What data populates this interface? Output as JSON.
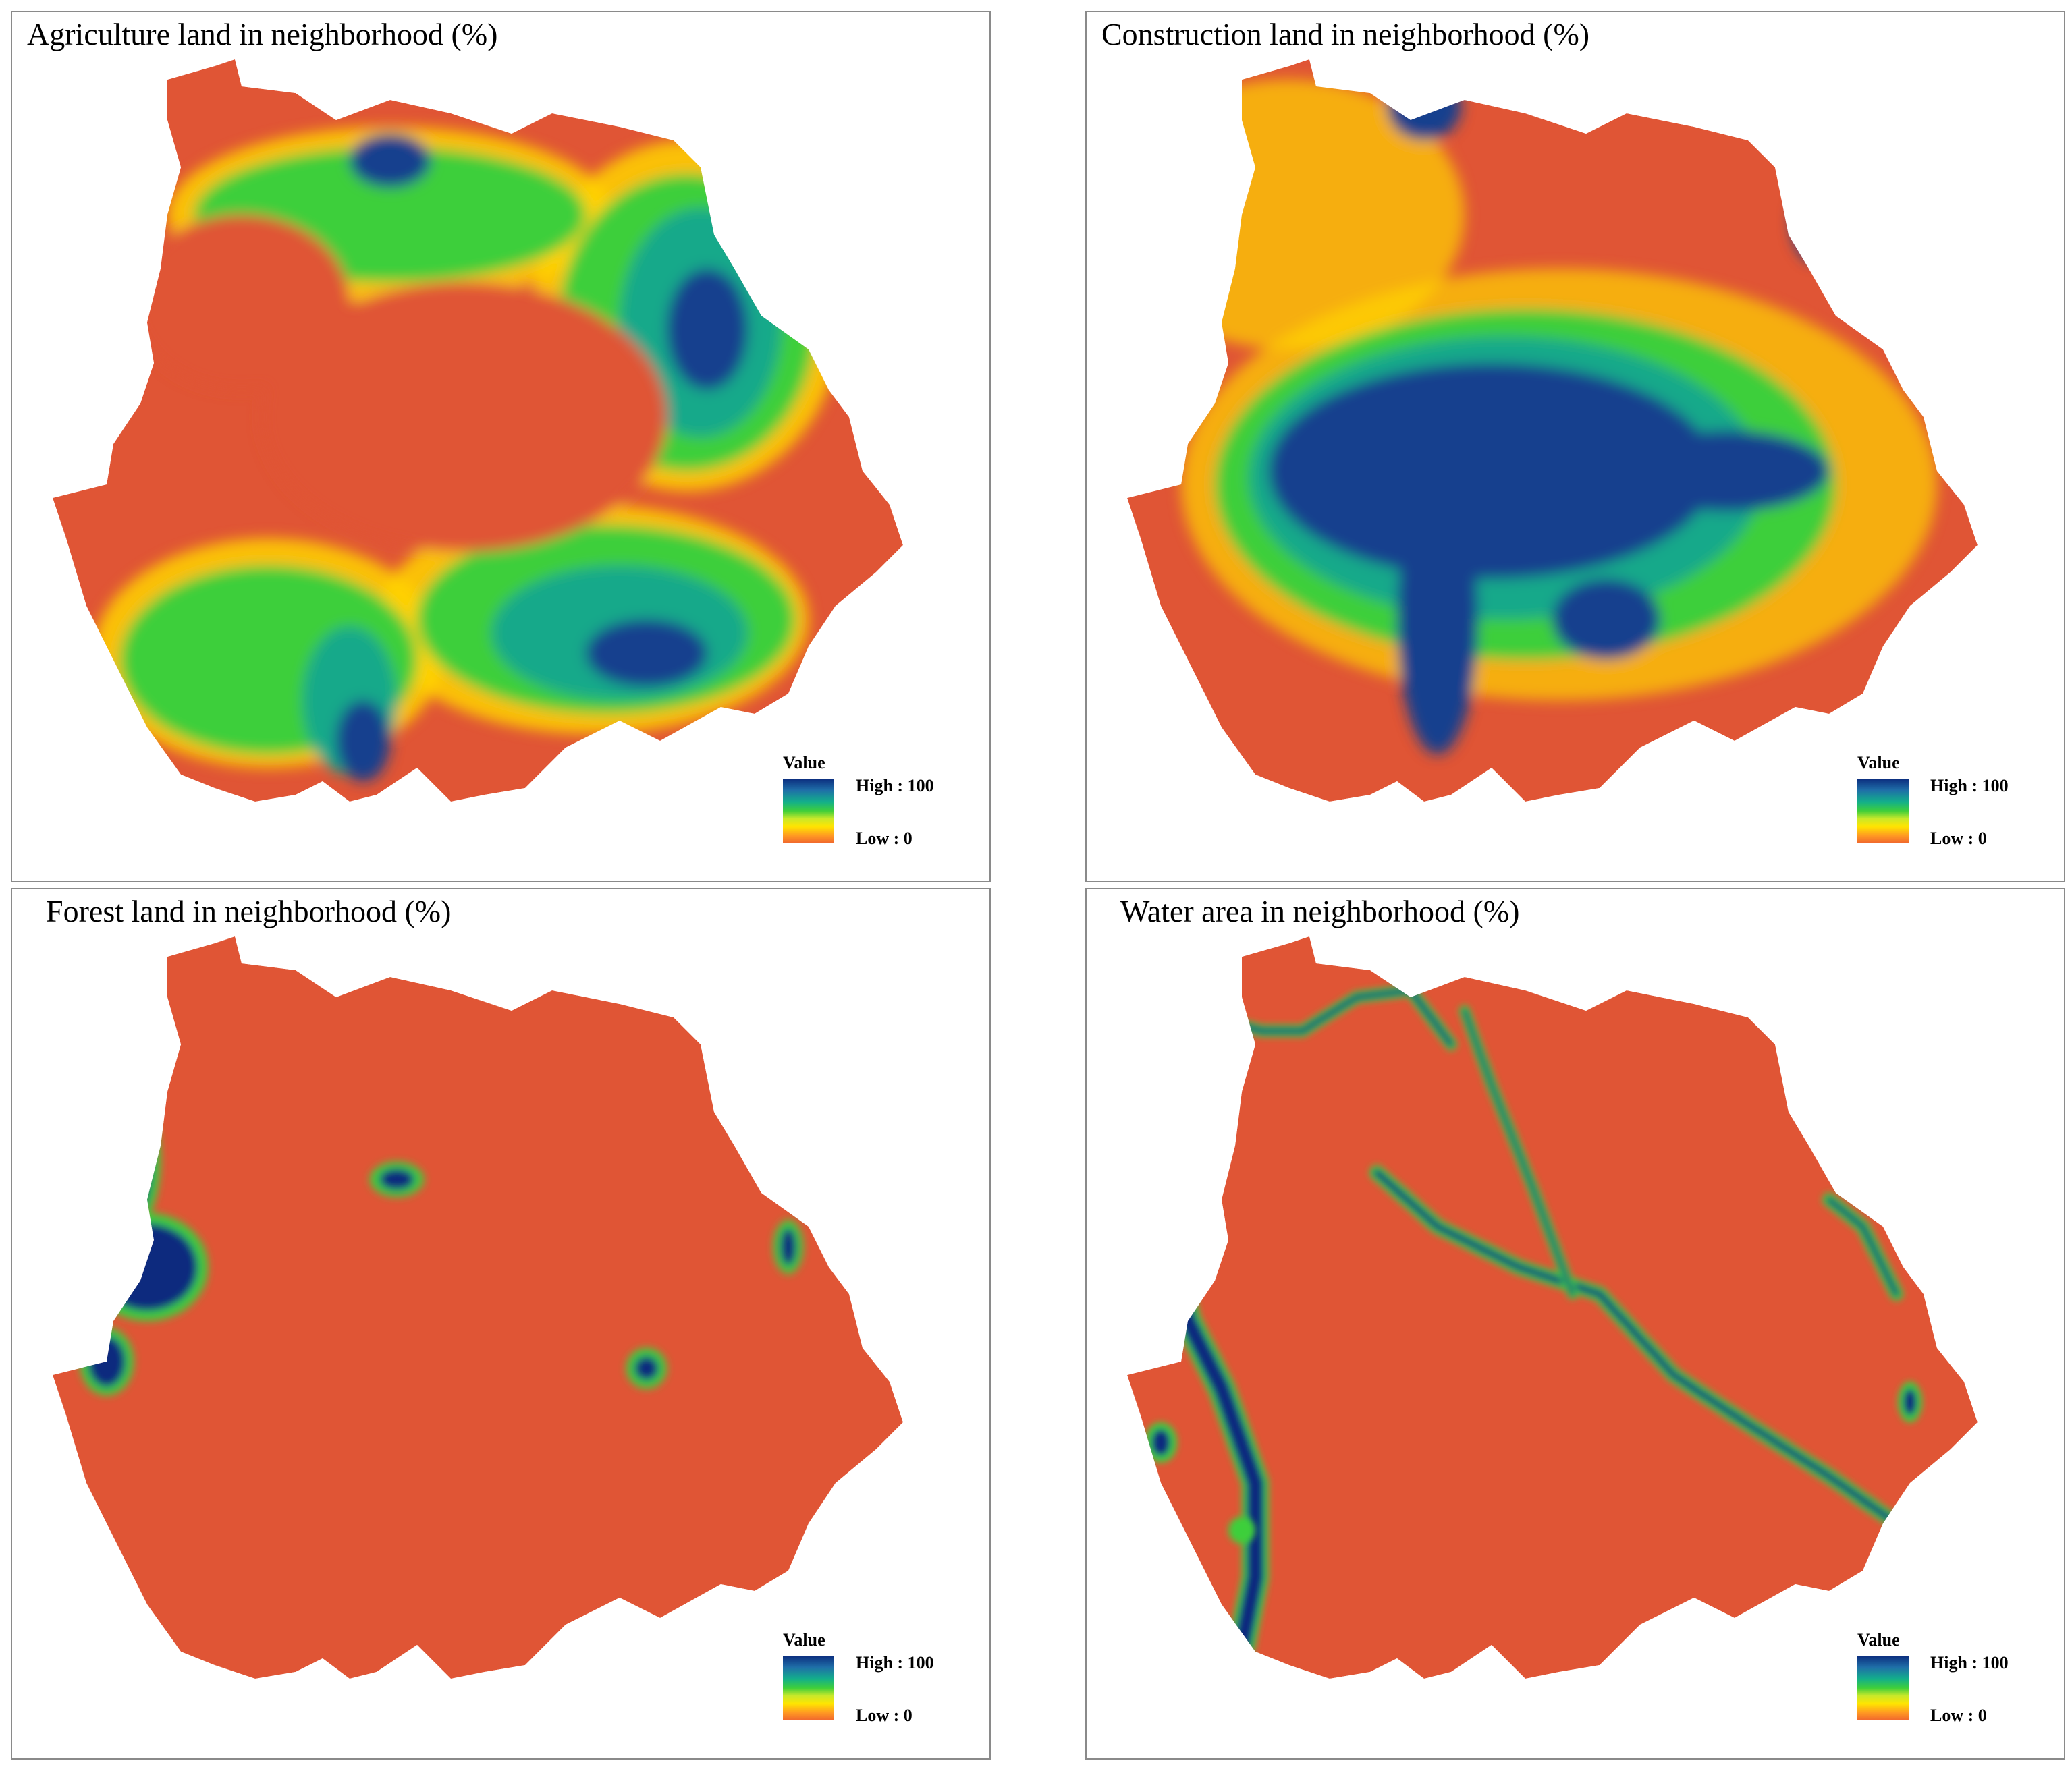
{
  "panels": [
    {
      "title": "Agriculture land in neighborhood (%)",
      "layer": "agriculture"
    },
    {
      "title": "Construction land in neighborhood (%)",
      "layer": "construction"
    },
    {
      "title": "Forest land in neighborhood (%)",
      "layer": "forest"
    },
    {
      "title": "Water area in neighborhood (%)",
      "layer": "water"
    }
  ],
  "legend": {
    "title": "Value",
    "high": "High : 100",
    "low": "Low : 0"
  },
  "colors": {
    "low": "#e05535",
    "edge": "#ffa12a",
    "yellow": "#ffe100",
    "green": "#28c83a",
    "teal": "#12a98a",
    "high": "#0b2c7e",
    "panel_border": "#8a8a8a"
  }
}
